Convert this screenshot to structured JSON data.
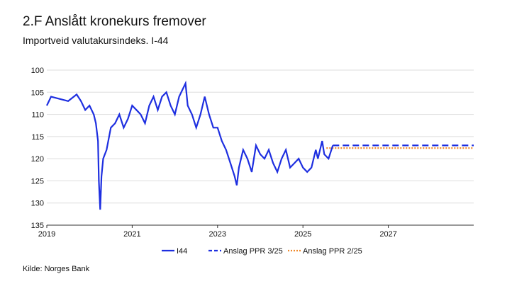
{
  "chart_data": {
    "type": "line",
    "title": "2.F Anslått kronekurs fremover",
    "subtitle": "Importveid valutakursindeks. I-44",
    "source": "Kilde: Norges Bank",
    "xlim": [
      2019,
      2029
    ],
    "xticks": [
      2019,
      2021,
      2023,
      2025,
      2027
    ],
    "ylim": [
      100,
      135
    ],
    "yticks": [
      100,
      105,
      110,
      115,
      120,
      125,
      130,
      135
    ],
    "y_inverted": true,
    "grid": true,
    "legend": "bottom",
    "series": [
      {
        "name": "I44",
        "color": "#1e2fe0",
        "style": "solid",
        "x": [
          2019.0,
          2019.1,
          2019.3,
          2019.5,
          2019.7,
          2019.8,
          2019.9,
          2020.0,
          2020.1,
          2020.15,
          2020.2,
          2020.22,
          2020.25,
          2020.28,
          2020.32,
          2020.4,
          2020.5,
          2020.6,
          2020.7,
          2020.8,
          2020.9,
          2021.0,
          2021.1,
          2021.2,
          2021.3,
          2021.4,
          2021.5,
          2021.6,
          2021.7,
          2021.8,
          2021.9,
          2022.0,
          2022.1,
          2022.2,
          2022.25,
          2022.3,
          2022.4,
          2022.5,
          2022.6,
          2022.7,
          2022.8,
          2022.9,
          2023.0,
          2023.1,
          2023.2,
          2023.3,
          2023.4,
          2023.45,
          2023.5,
          2023.6,
          2023.7,
          2023.8,
          2023.9,
          2024.0,
          2024.1,
          2024.2,
          2024.3,
          2024.4,
          2024.5,
          2024.6,
          2024.7,
          2024.8,
          2024.9,
          2025.0,
          2025.1,
          2025.2,
          2025.3,
          2025.35,
          2025.45,
          2025.5,
          2025.6,
          2025.7
        ],
        "values": [
          108,
          106,
          106.5,
          107,
          105.5,
          107,
          109,
          108,
          110,
          112,
          116,
          125,
          131.5,
          124,
          120,
          118,
          113,
          112,
          110,
          113,
          111,
          108,
          109,
          110,
          112,
          108,
          106,
          109,
          106,
          105,
          108,
          110,
          106,
          104,
          103,
          108,
          110,
          113,
          110,
          106,
          110,
          113,
          113,
          116,
          118,
          121,
          124,
          126,
          122,
          118,
          120,
          123,
          117,
          119,
          120,
          118,
          121,
          123,
          120,
          118,
          122,
          121,
          120,
          122,
          123,
          122,
          118,
          120,
          116,
          119,
          120,
          117
        ]
      },
      {
        "name": "Anslag PPR 3/25",
        "color": "#1e2fe0",
        "style": "dashed",
        "x": [
          2025.7,
          2029
        ],
        "values": [
          117,
          117
        ]
      },
      {
        "name": "Anslag PPR 2/25",
        "color": "#f08a2c",
        "style": "dotted",
        "x": [
          2025.55,
          2029
        ],
        "values": [
          117.6,
          117.6
        ]
      }
    ]
  }
}
